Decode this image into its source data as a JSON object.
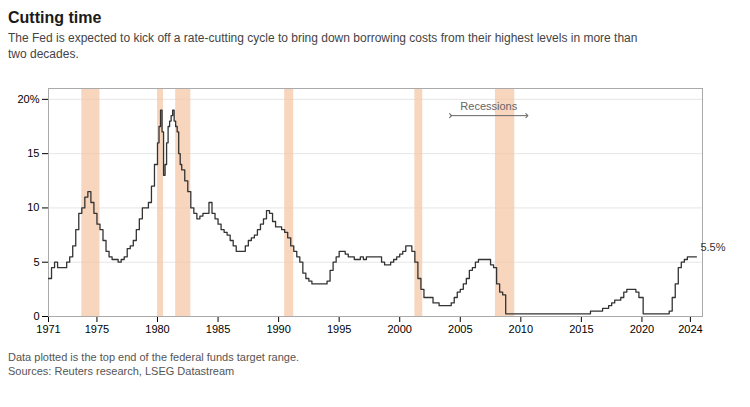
{
  "chart_data": {
    "type": "step",
    "title": "Cutting time",
    "subtitle": "The Fed is expected to kick off a rate-cutting cycle to bring down borrowing costs from their highest levels in more than\ntwo decades.",
    "footnotes": [
      "Data plotted is the top end of the federal funds target range.",
      "Sources: Reuters research, LSEG Datastream"
    ],
    "color": "#333333",
    "x": [
      1971.0,
      1971.25,
      1971.5,
      1971.75,
      1972.0,
      1972.25,
      1972.5,
      1972.75,
      1973.0,
      1973.25,
      1973.5,
      1973.75,
      1974.0,
      1974.25,
      1974.5,
      1974.75,
      1975.0,
      1975.25,
      1975.5,
      1975.75,
      1976.0,
      1976.25,
      1976.5,
      1976.75,
      1977.0,
      1977.25,
      1977.5,
      1977.75,
      1978.0,
      1978.25,
      1978.5,
      1978.75,
      1979.0,
      1979.25,
      1979.5,
      1979.75,
      1980.0,
      1980.125,
      1980.25,
      1980.375,
      1980.5,
      1980.625,
      1980.75,
      1980.875,
      1981.0,
      1981.125,
      1981.25,
      1981.375,
      1981.5,
      1981.625,
      1981.75,
      1981.875,
      1982.0,
      1982.25,
      1982.5,
      1982.75,
      1983.0,
      1983.25,
      1983.5,
      1983.75,
      1984.0,
      1984.25,
      1984.5,
      1984.75,
      1985.0,
      1985.25,
      1985.5,
      1985.75,
      1986.0,
      1986.25,
      1986.5,
      1986.75,
      1987.0,
      1987.25,
      1987.5,
      1987.75,
      1988.0,
      1988.25,
      1988.5,
      1988.75,
      1989.0,
      1989.25,
      1989.5,
      1989.75,
      1990.0,
      1990.25,
      1990.5,
      1990.75,
      1991.0,
      1991.25,
      1991.5,
      1991.75,
      1992.0,
      1992.25,
      1992.5,
      1992.75,
      1993.0,
      1993.25,
      1993.5,
      1993.75,
      1994.0,
      1994.25,
      1994.5,
      1994.75,
      1995.0,
      1995.25,
      1995.5,
      1995.75,
      1996.0,
      1996.25,
      1996.5,
      1996.75,
      1997.0,
      1997.25,
      1997.5,
      1997.75,
      1998.0,
      1998.25,
      1998.5,
      1998.75,
      1999.0,
      1999.25,
      1999.5,
      1999.75,
      2000.0,
      2000.25,
      2000.5,
      2000.75,
      2001.0,
      2001.25,
      2001.5,
      2001.75,
      2002.0,
      2002.25,
      2002.5,
      2002.75,
      2003.0,
      2003.25,
      2003.5,
      2003.75,
      2004.0,
      2004.25,
      2004.5,
      2004.75,
      2005.0,
      2005.25,
      2005.5,
      2005.75,
      2006.0,
      2006.25,
      2006.5,
      2006.75,
      2007.0,
      2007.25,
      2007.5,
      2007.75,
      2008.0,
      2008.25,
      2008.5,
      2008.75,
      2009.0,
      2009.5,
      2010.0,
      2010.5,
      2011.0,
      2011.5,
      2012.0,
      2012.5,
      2013.0,
      2013.5,
      2014.0,
      2014.5,
      2015.0,
      2015.75,
      2016.0,
      2016.75,
      2017.0,
      2017.25,
      2017.5,
      2017.75,
      2018.0,
      2018.25,
      2018.5,
      2018.75,
      2019.0,
      2019.25,
      2019.5,
      2019.75,
      2020.0,
      2020.1,
      2020.5,
      2021.0,
      2021.5,
      2022.0,
      2022.25,
      2022.5,
      2022.75,
      2023.0,
      2023.25,
      2023.5,
      2023.75,
      2024.0,
      2024.5
    ],
    "values": [
      3.5,
      4.5,
      5.0,
      4.5,
      4.5,
      4.5,
      5.0,
      5.5,
      6.5,
      8.0,
      9.5,
      10.0,
      11.0,
      11.5,
      10.5,
      9.5,
      8.5,
      8.0,
      7.0,
      6.0,
      5.5,
      5.25,
      5.25,
      5.0,
      5.25,
      5.5,
      6.25,
      6.5,
      7.0,
      8.0,
      9.0,
      10.0,
      10.0,
      10.5,
      12.0,
      14.0,
      16.0,
      17.5,
      19.0,
      17.0,
      13.0,
      14.0,
      16.0,
      17.5,
      18.0,
      18.5,
      19.0,
      18.0,
      17.5,
      17.0,
      15.0,
      14.0,
      13.5,
      12.5,
      11.5,
      10.0,
      9.5,
      9.0,
      9.25,
      9.5,
      9.5,
      10.5,
      9.5,
      9.0,
      8.5,
      8.0,
      7.75,
      7.5,
      7.0,
      6.5,
      6.0,
      6.0,
      6.0,
      6.5,
      7.0,
      7.25,
      7.5,
      8.0,
      8.5,
      9.0,
      9.75,
      9.5,
      8.75,
      8.25,
      8.25,
      8.0,
      7.75,
      7.25,
      6.5,
      6.0,
      5.5,
      5.0,
      4.0,
      3.5,
      3.25,
      3.0,
      3.0,
      3.0,
      3.0,
      3.0,
      3.25,
      4.25,
      5.0,
      5.5,
      6.0,
      6.0,
      5.75,
      5.5,
      5.5,
      5.25,
      5.25,
      5.5,
      5.25,
      5.5,
      5.5,
      5.5,
      5.5,
      5.5,
      5.0,
      4.75,
      4.75,
      5.0,
      5.25,
      5.5,
      5.75,
      6.0,
      6.5,
      6.5,
      6.0,
      5.0,
      3.5,
      2.5,
      1.75,
      1.75,
      1.75,
      1.25,
      1.25,
      1.0,
      1.0,
      1.0,
      1.0,
      1.25,
      1.75,
      2.25,
      2.5,
      3.0,
      3.5,
      4.25,
      4.5,
      5.0,
      5.25,
      5.25,
      5.25,
      5.25,
      4.75,
      4.5,
      3.0,
      2.25,
      2.0,
      0.25,
      0.25,
      0.25,
      0.25,
      0.25,
      0.25,
      0.25,
      0.25,
      0.25,
      0.25,
      0.25,
      0.25,
      0.25,
      0.25,
      0.5,
      0.5,
      0.75,
      0.75,
      1.0,
      1.25,
      1.5,
      1.5,
      1.75,
      2.25,
      2.5,
      2.5,
      2.5,
      2.25,
      1.75,
      1.75,
      0.25,
      0.25,
      0.25,
      0.25,
      0.25,
      0.5,
      1.75,
      3.0,
      4.5,
      5.0,
      5.25,
      5.5,
      5.5,
      5.5
    ],
    "recessions": {
      "label": "Recessions",
      "color": "#f5c5a3",
      "bands": [
        [
          1973.75,
          1975.25
        ],
        [
          1980.0,
          1980.5
        ],
        [
          1981.5,
          1982.75
        ],
        [
          1990.5,
          1991.25
        ],
        [
          2001.25,
          2001.9
        ],
        [
          2007.9,
          2009.5
        ]
      ],
      "arrow": [
        2004.2,
        2010.5
      ],
      "y": 18.5
    },
    "annotations": [
      {
        "text": "5.5%",
        "x": 2024.5,
        "y": 5.5
      }
    ],
    "xlim": [
      1971,
      2025
    ],
    "xticks": [
      1971,
      1975,
      1980,
      1985,
      1990,
      1995,
      2000,
      2005,
      2010,
      2015,
      2020,
      2024
    ],
    "ylim": [
      0,
      21
    ],
    "yticks": [
      0,
      5,
      10,
      15,
      {
        "value": 20,
        "label": "20%"
      }
    ],
    "grid": "y"
  }
}
